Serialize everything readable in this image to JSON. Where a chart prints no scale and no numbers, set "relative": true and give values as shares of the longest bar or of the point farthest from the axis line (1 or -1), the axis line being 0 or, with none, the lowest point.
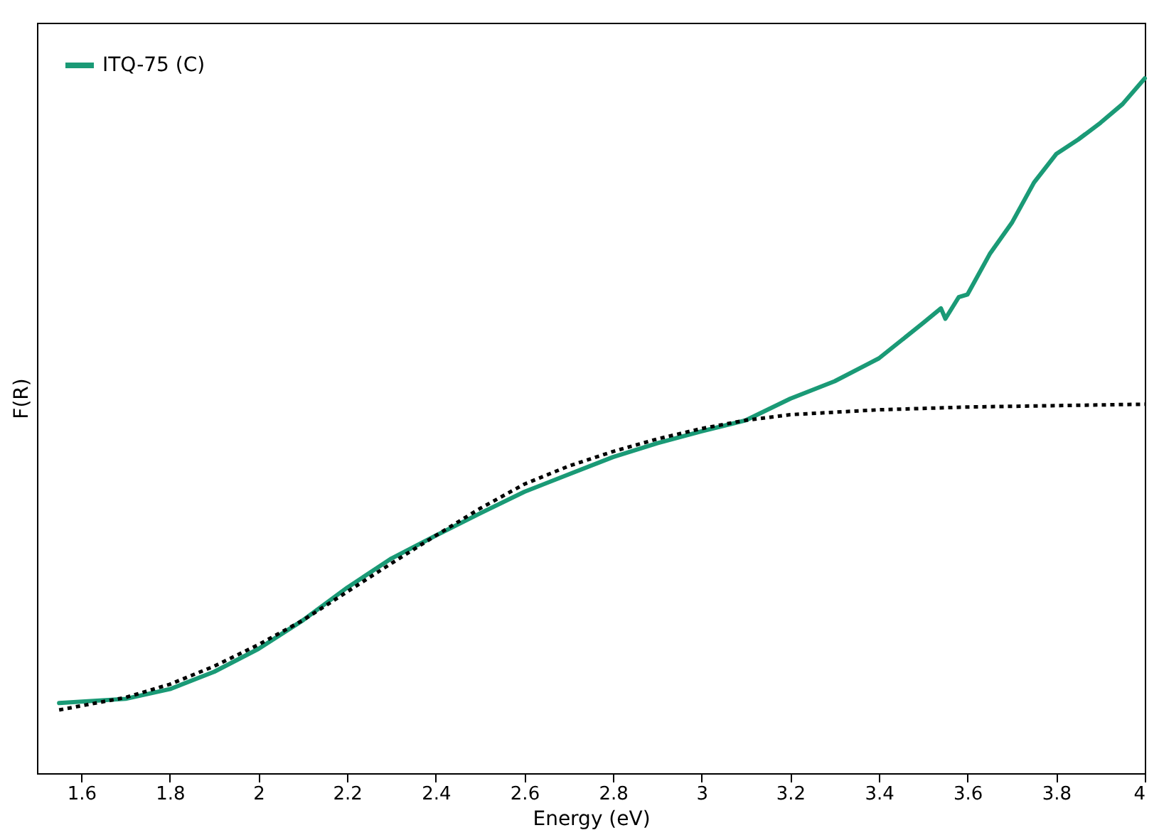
{
  "chart_data": {
    "type": "line",
    "xlabel": "Energy (eV)",
    "ylabel": "F(R)",
    "relative": true,
    "xlim": [
      1.5,
      4
    ],
    "xticks": [
      1.6,
      1.8,
      2,
      2.2,
      2.4,
      2.6,
      2.8,
      3,
      3.2,
      3.4,
      3.6,
      3.8,
      4
    ],
    "legend": "top left",
    "grid": false,
    "series": [
      {
        "name": "ITQ-75 (C)",
        "color": "#1a9a76",
        "line_style": "solid",
        "x": [
          1.55,
          1.7,
          1.8,
          1.9,
          2.0,
          2.1,
          2.2,
          2.3,
          2.4,
          2.5,
          2.6,
          2.7,
          2.8,
          2.9,
          3.0,
          3.1,
          3.2,
          3.3,
          3.4,
          3.5,
          3.54,
          3.55,
          3.58,
          3.6,
          3.65,
          3.7,
          3.75,
          3.8,
          3.85,
          3.9,
          3.95,
          4.0
        ],
        "values": [
          0.101,
          0.107,
          0.121,
          0.146,
          0.179,
          0.22,
          0.267,
          0.309,
          0.342,
          0.374,
          0.405,
          0.43,
          0.455,
          0.475,
          0.492,
          0.508,
          0.539,
          0.564,
          0.597,
          0.648,
          0.669,
          0.654,
          0.685,
          0.689,
          0.747,
          0.792,
          0.85,
          0.891,
          0.912,
          0.936,
          0.963,
          1.0
        ]
      },
      {
        "color": "#000000",
        "line_style": "dotted",
        "x": [
          1.55,
          1.7,
          1.8,
          1.9,
          2.0,
          2.1,
          2.2,
          2.3,
          2.4,
          2.5,
          2.6,
          2.7,
          2.8,
          2.9,
          3.0,
          3.1,
          3.2,
          3.4,
          3.6,
          3.8,
          4.0
        ],
        "values": [
          0.091,
          0.109,
          0.128,
          0.154,
          0.185,
          0.22,
          0.261,
          0.302,
          0.342,
          0.381,
          0.416,
          0.442,
          0.463,
          0.481,
          0.496,
          0.508,
          0.516,
          0.523,
          0.527,
          0.529,
          0.531
        ]
      }
    ]
  }
}
